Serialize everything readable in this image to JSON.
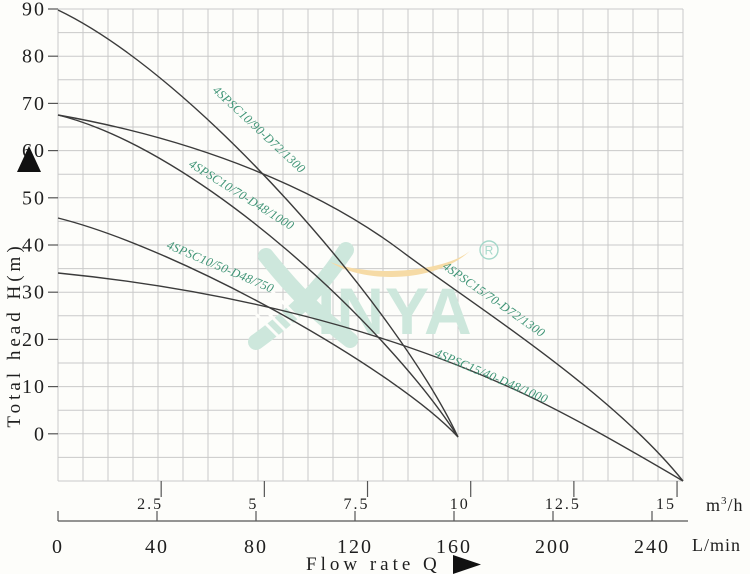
{
  "y_axis": {
    "title": "Total head H(m)",
    "arrow": "▲",
    "ticks": [
      "90",
      "80",
      "70",
      "60",
      "50",
      "40",
      "30",
      "20",
      "10",
      "0"
    ]
  },
  "x_axis_m3h": {
    "ticks": [
      "2.5",
      "5",
      "7.5",
      "10",
      "12.5",
      "15"
    ],
    "tick_values": [
      2.5,
      5,
      7.5,
      10,
      12.5,
      15
    ],
    "unit_base": "m",
    "unit_sup": "3",
    "unit_rest": "/h"
  },
  "x_axis_lmin": {
    "ticks": [
      "0",
      "40",
      "80",
      "120",
      "160",
      "200",
      "240"
    ],
    "tick_values": [
      0,
      40,
      80,
      120,
      160,
      200,
      240
    ],
    "unit": "L/min"
  },
  "x_title": {
    "text": "Flow rate Q",
    "arrow": "▶"
  },
  "watermark": {
    "brand": "XINYA",
    "brand_rest": "INYA",
    "registered": "R"
  },
  "colors": {
    "curve": "#3b3b3b",
    "curve_label": "#3f9476",
    "grid": "#c9c9c9",
    "axis": "#555555",
    "watermark_teal": "#cde7dc",
    "watermark_orange": "#f6dba6"
  },
  "chart_data": {
    "type": "line",
    "title": "",
    "xlabel": "Flow rate Q",
    "x_units": [
      "m3/h",
      "L/min"
    ],
    "ylabel": "Total head H(m)",
    "xlim_m3h": [
      0,
      15.6
    ],
    "xlim_lmin": [
      0,
      260
    ],
    "ylim": [
      -10,
      90
    ],
    "grid": true,
    "legend_position": "labels-on-curves",
    "series": [
      {
        "name": "4SPSC10/90-D72/1300",
        "points_m3h_H": [
          [
            0,
            90
          ],
          [
            2.5,
            79
          ],
          [
            5,
            57
          ],
          [
            7.5,
            28
          ],
          [
            9.7,
            0
          ]
        ]
      },
      {
        "name": "4SPSC10/70-D48/1000",
        "points_m3h_H": [
          [
            0,
            68
          ],
          [
            2.5,
            59
          ],
          [
            5,
            43
          ],
          [
            7.5,
            22
          ],
          [
            9.7,
            0
          ]
        ]
      },
      {
        "name": "4SPSC10/50-D48/750",
        "points_m3h_H": [
          [
            0,
            46
          ],
          [
            2.5,
            38
          ],
          [
            5,
            27
          ],
          [
            7.5,
            15
          ],
          [
            9.7,
            0
          ]
        ]
      },
      {
        "name": "4SPSC15/70-D72/1300",
        "points_m3h_H": [
          [
            0,
            68
          ],
          [
            2.5,
            63
          ],
          [
            5,
            55
          ],
          [
            7.5,
            44
          ],
          [
            10,
            29
          ],
          [
            12.5,
            12
          ],
          [
            14,
            0
          ],
          [
            15.2,
            -10
          ]
        ]
      },
      {
        "name": "4SPSC15/40-D48/1000",
        "points_m3h_H": [
          [
            0,
            34
          ],
          [
            2.5,
            31
          ],
          [
            5,
            27
          ],
          [
            7.5,
            21
          ],
          [
            10,
            14
          ],
          [
            12.5,
            3
          ],
          [
            13.1,
            0
          ],
          [
            15.2,
            -10
          ]
        ]
      }
    ]
  }
}
